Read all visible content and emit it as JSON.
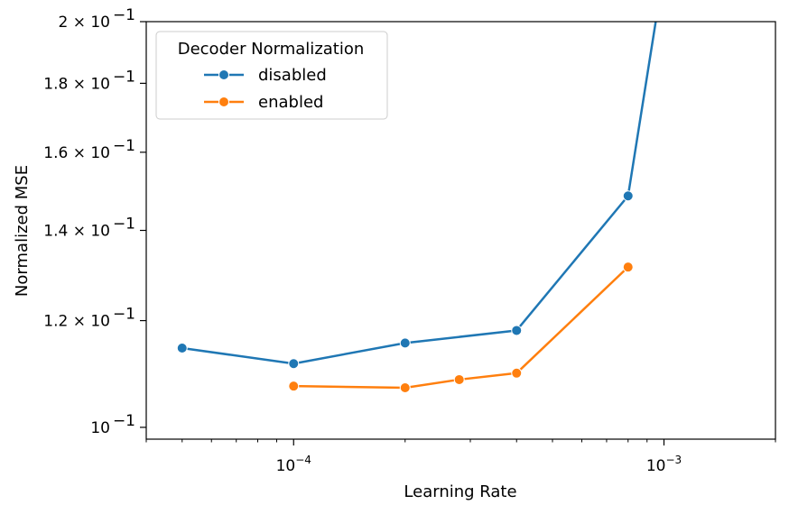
{
  "chart_data": {
    "type": "line",
    "xlabel": "Learning Rate",
    "ylabel": "Normalized MSE",
    "xscale": "log",
    "yscale": "log",
    "xlim": [
      4e-05,
      0.002
    ],
    "ylim": [
      0.098,
      0.2
    ],
    "grid": false,
    "x_ticks": [
      {
        "value": 0.0001,
        "base": "10",
        "exp": "−4"
      },
      {
        "value": 0.001,
        "base": "10",
        "exp": "−3"
      }
    ],
    "y_ticks": [
      {
        "value": 0.1,
        "mant": "10",
        "exp": "−1"
      },
      {
        "value": 0.12,
        "mant": "1.2 × 10",
        "exp": "−1"
      },
      {
        "value": 0.14,
        "mant": "1.4 × 10",
        "exp": "−1"
      },
      {
        "value": 0.16,
        "mant": "1.6 × 10",
        "exp": "−1"
      },
      {
        "value": 0.18,
        "mant": "1.8 × 10",
        "exp": "−1"
      },
      {
        "value": 0.2,
        "mant": "2 × 10",
        "exp": "−1"
      }
    ],
    "legend": {
      "title": "Decoder Normalization",
      "position": "upper-left"
    },
    "series": [
      {
        "name": "disabled",
        "color": "#1f77b4",
        "points": [
          {
            "x": 5e-05,
            "y": 0.1145
          },
          {
            "x": 0.0001,
            "y": 0.1115
          },
          {
            "x": 0.0002,
            "y": 0.1155
          },
          {
            "x": 0.0004,
            "y": 0.118
          },
          {
            "x": 0.0008,
            "y": 0.1485
          },
          {
            "x": 0.00095,
            "y": 0.2
          }
        ]
      },
      {
        "name": "enabled",
        "color": "#ff7f0e",
        "points": [
          {
            "x": 0.0001,
            "y": 0.1073
          },
          {
            "x": 0.0002,
            "y": 0.107
          },
          {
            "x": 0.00028,
            "y": 0.1085
          },
          {
            "x": 0.0004,
            "y": 0.1097
          },
          {
            "x": 0.0008,
            "y": 0.1315
          }
        ]
      }
    ]
  }
}
